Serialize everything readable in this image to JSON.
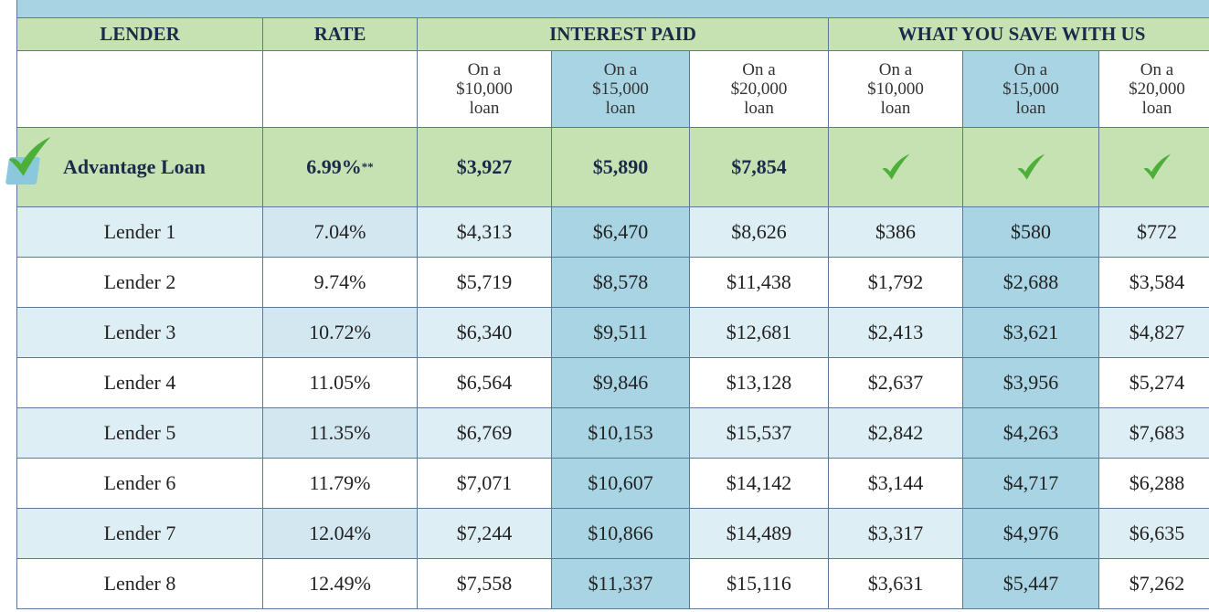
{
  "table": {
    "headers": [
      "LENDER",
      "RATE",
      "INTEREST PAID",
      "WHAT YOU SAVE WITH US"
    ],
    "subheaders": [
      [
        "On a",
        "$10,000",
        "loan"
      ],
      [
        "On a",
        "$15,000",
        "loan"
      ],
      [
        "On a",
        "$20,000",
        "loan"
      ],
      [
        "On a",
        "$10,000",
        "loan"
      ],
      [
        "On a",
        "$15,000",
        "loan"
      ],
      [
        "On a",
        "$20,000",
        "loan"
      ]
    ],
    "advantage": {
      "name": "Advantage Loan",
      "rate": "6.99%",
      "rate_note": "**",
      "interest": [
        "$3,927",
        "$5,890",
        "$7,854"
      ]
    },
    "rows": [
      [
        "Lender 1",
        "7.04%",
        "$4,313",
        "$6,470",
        "$8,626",
        "$386",
        "$580",
        "$772"
      ],
      [
        "Lender 2",
        "9.74%",
        "$5,719",
        "$8,578",
        "$11,438",
        "$1,792",
        "$2,688",
        "$3,584"
      ],
      [
        "Lender 3",
        "10.72%",
        "$6,340",
        "$9,511",
        "$12,681",
        "$2,413",
        "$3,621",
        "$4,827"
      ],
      [
        "Lender 4",
        "11.05%",
        "$6,564",
        "$9,846",
        "$13,128",
        "$2,637",
        "$3,956",
        "$5,274"
      ],
      [
        "Lender 5",
        "11.35%",
        "$6,769",
        "$10,153",
        "$15,537",
        "$2,842",
        "$4,263",
        "$7,683"
      ],
      [
        "Lender 6",
        "11.79%",
        "$7,071",
        "$10,607",
        "$14,142",
        "$3,144",
        "$4,717",
        "$6,288"
      ],
      [
        "Lender 7",
        "12.04%",
        "$7,244",
        "$10,866",
        "$14,489",
        "$3,317",
        "$4,976",
        "$6,635"
      ],
      [
        "Lender 8",
        "12.49%",
        "$7,558",
        "$11,337",
        "$15,116",
        "$3,631",
        "$5,447",
        "$7,262"
      ]
    ]
  }
}
